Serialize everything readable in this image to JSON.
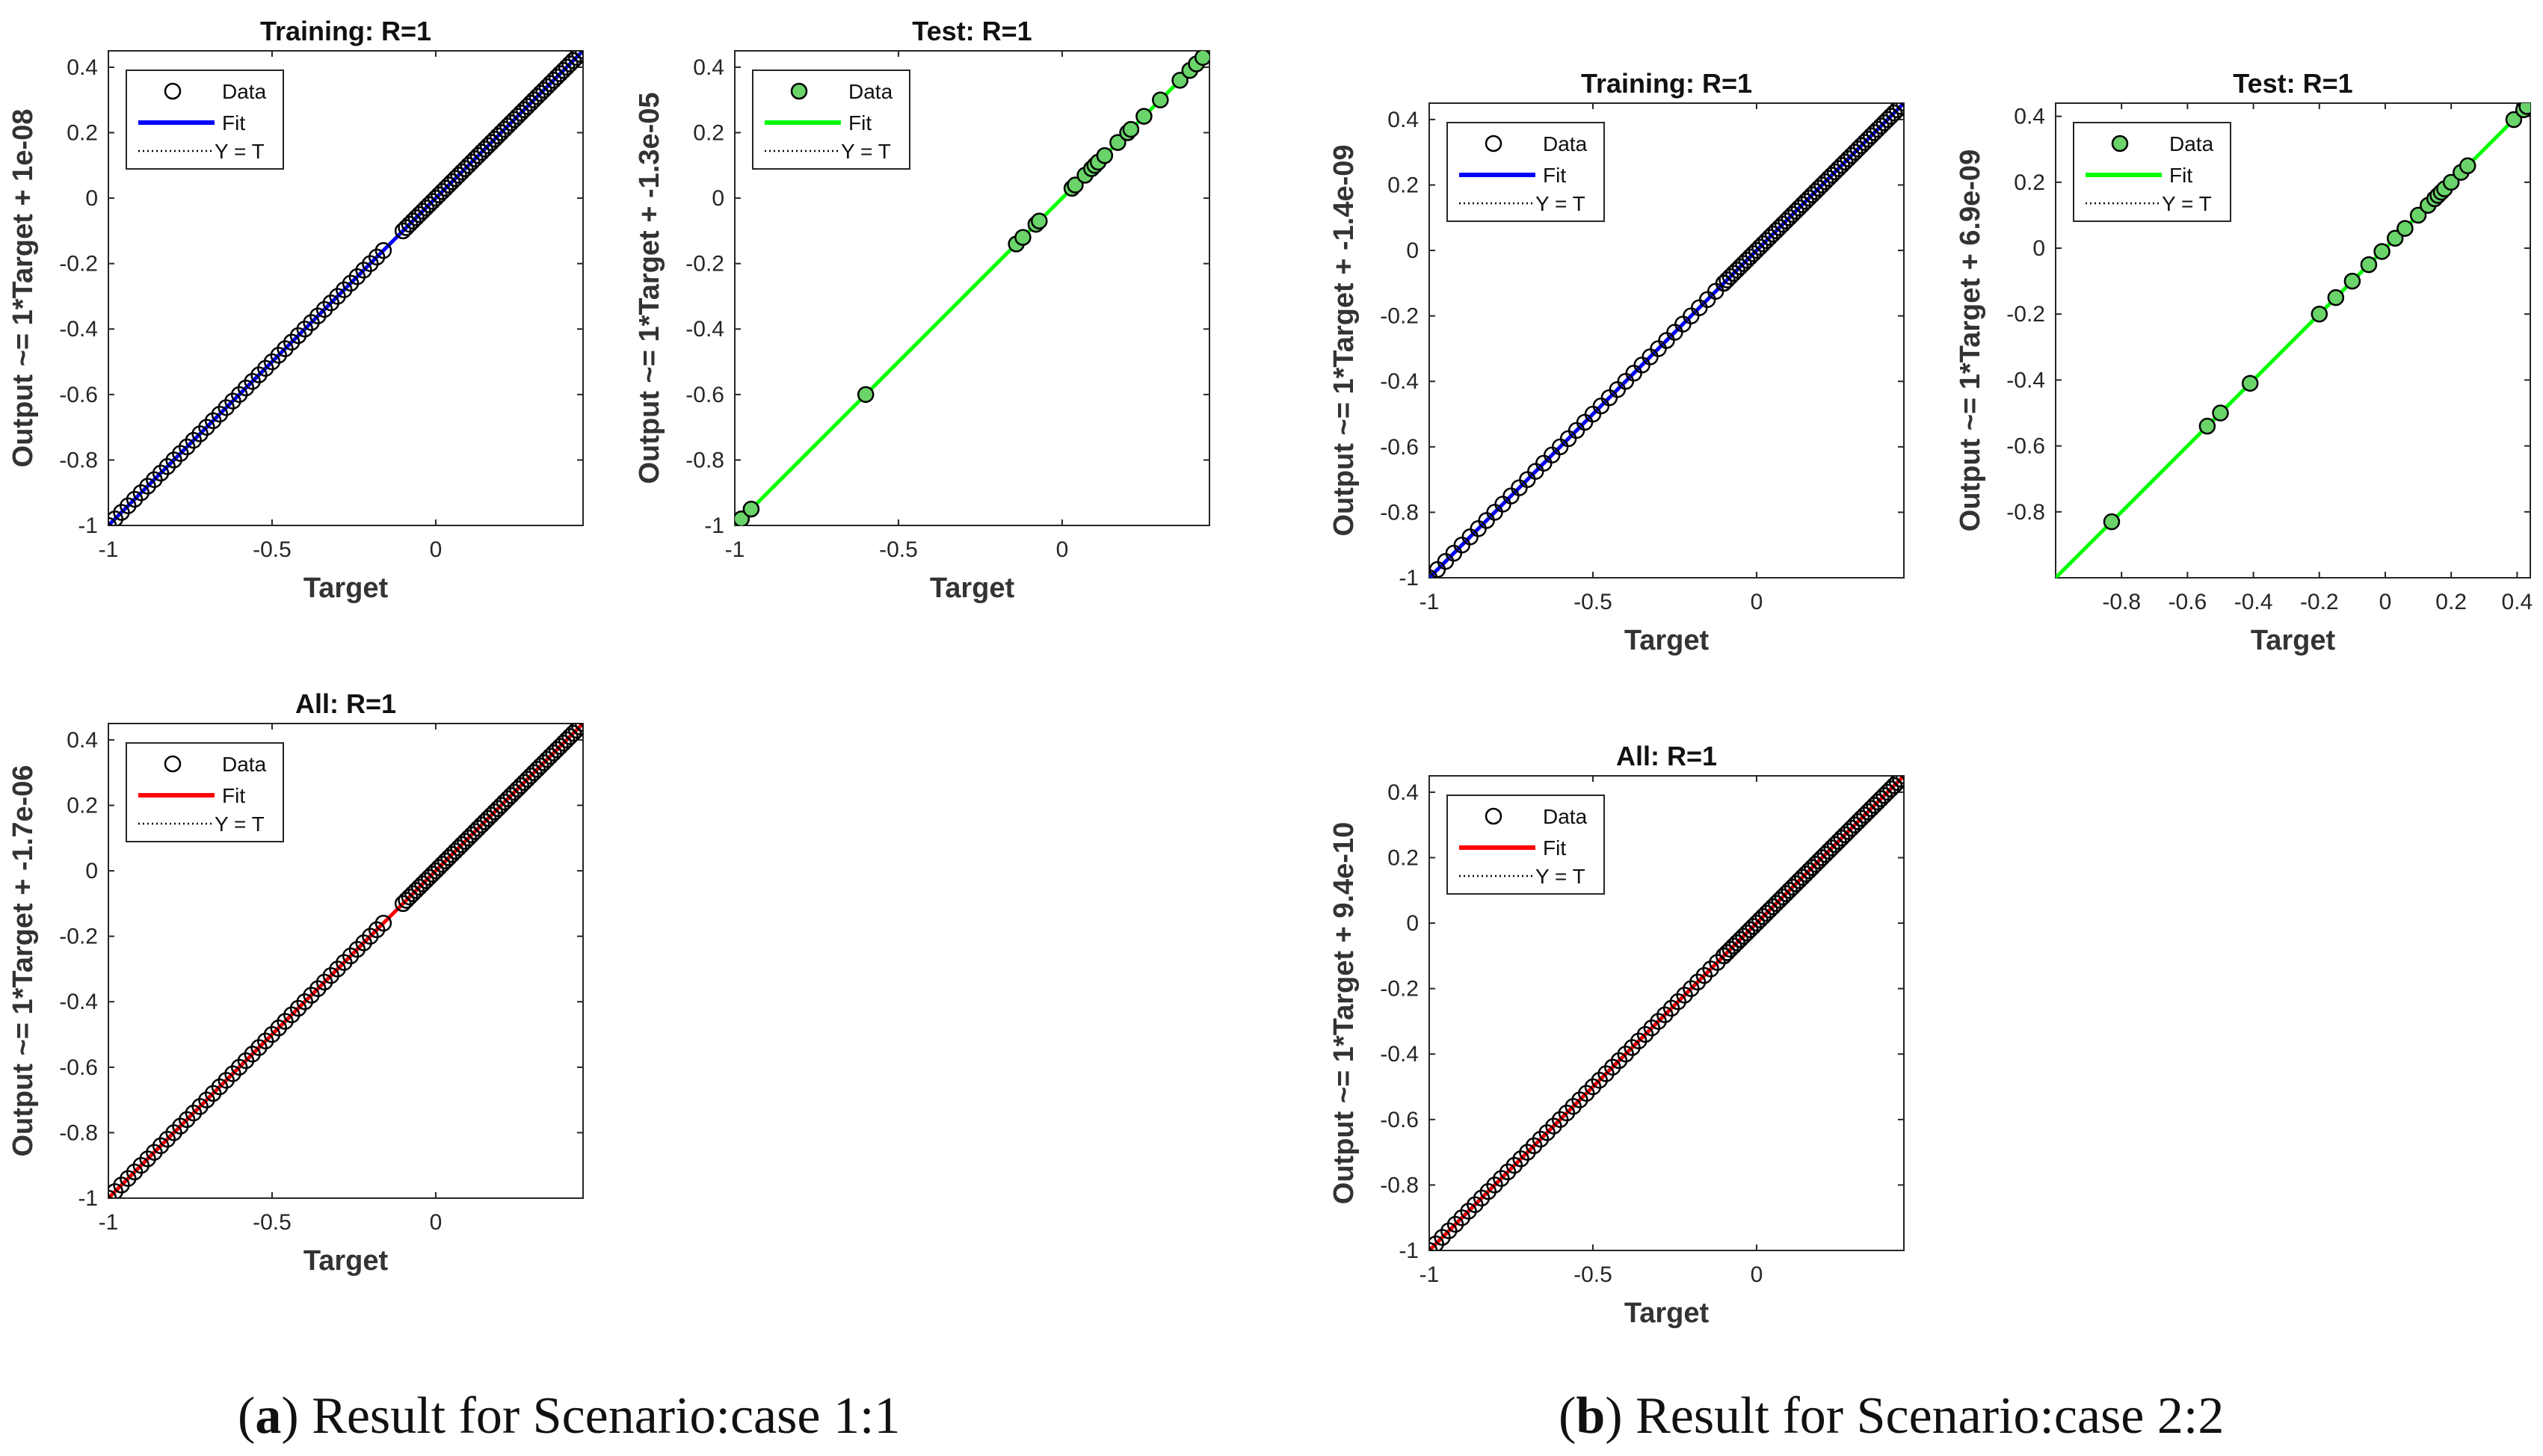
{
  "captions": {
    "a": {
      "label": "a",
      "text": "Result for Scenario:case 1:1"
    },
    "b": {
      "label": "b",
      "text": "Result for Scenario:case 2:2"
    }
  },
  "colors": {
    "training": "#0000ff",
    "test": "#00ff00",
    "all": "#ff0000",
    "axis": "#262626",
    "marker_fill_test": "#6ad36a"
  },
  "chart_data": [
    {
      "id": "a-training",
      "type": "scatter",
      "title": "Training: R=1",
      "xlabel": "Target",
      "ylabel": "Output ~= 1*Target + 1e-08",
      "xlim": [
        -1,
        0.45
      ],
      "ylim": [
        -1,
        0.45
      ],
      "xticks": [
        -1,
        -0.5,
        0
      ],
      "xticklabels": [
        "-1",
        "-0.5",
        "0"
      ],
      "yticks": [
        -1,
        -0.8,
        -0.6,
        -0.4,
        -0.2,
        0,
        0.2,
        0.4
      ],
      "yticklabels": [
        "-1",
        "-0.8",
        "-0.6",
        "-0.4",
        "-0.2",
        "0",
        "0.2",
        "0.4"
      ],
      "fit_color": "#0000ff",
      "marker_fill": "none",
      "slope": 1,
      "intercept": 1e-08,
      "legend": [
        "Data",
        "Fit",
        "Y = T"
      ],
      "legend_position": "top-left",
      "points": {
        "dense_ranges": [
          [
            -1,
            -0.15,
            0.02
          ],
          [
            -0.1,
            0.45,
            0.01
          ]
        ]
      }
    },
    {
      "id": "a-test",
      "type": "scatter",
      "title": "Test: R=1",
      "xlabel": "Target",
      "ylabel": "Output ~= 1*Target + -1.3e-05",
      "xlim": [
        -1,
        0.45
      ],
      "ylim": [
        -1,
        0.45
      ],
      "xticks": [
        -1,
        -0.5,
        0
      ],
      "xticklabels": [
        "-1",
        "-0.5",
        "0"
      ],
      "yticks": [
        -1,
        -0.8,
        -0.6,
        -0.4,
        -0.2,
        0,
        0.2,
        0.4
      ],
      "yticklabels": [
        "-1",
        "-0.8",
        "-0.6",
        "-0.4",
        "-0.2",
        "0",
        "0.2",
        "0.4"
      ],
      "fit_color": "#00ff00",
      "marker_fill": "#6ad36a",
      "slope": 1,
      "intercept": -1.3e-05,
      "legend": [
        "Data",
        "Fit",
        "Y = T"
      ],
      "legend_position": "top-left",
      "points": {
        "x": [
          -0.98,
          -0.95,
          -0.6,
          -0.14,
          -0.12,
          -0.08,
          -0.07,
          0.03,
          0.04,
          0.07,
          0.09,
          0.1,
          0.11,
          0.13,
          0.17,
          0.2,
          0.21,
          0.25,
          0.3,
          0.36,
          0.39,
          0.41,
          0.43
        ]
      }
    },
    {
      "id": "a-all",
      "type": "scatter",
      "title": "All: R=1",
      "xlabel": "Target",
      "ylabel": "Output ~= 1*Target + -1.7e-06",
      "xlim": [
        -1,
        0.45
      ],
      "ylim": [
        -1,
        0.45
      ],
      "xticks": [
        -1,
        -0.5,
        0
      ],
      "xticklabels": [
        "-1",
        "-0.5",
        "0"
      ],
      "yticks": [
        -1,
        -0.8,
        -0.6,
        -0.4,
        -0.2,
        0,
        0.2,
        0.4
      ],
      "yticklabels": [
        "-1",
        "-0.8",
        "-0.6",
        "-0.4",
        "-0.2",
        "0",
        "0.2",
        "0.4"
      ],
      "fit_color": "#ff0000",
      "marker_fill": "none",
      "slope": 1,
      "intercept": -1.7e-06,
      "legend": [
        "Data",
        "Fit",
        "Y = T"
      ],
      "legend_position": "top-left",
      "points": {
        "dense_ranges": [
          [
            -1,
            -0.15,
            0.02
          ],
          [
            -0.1,
            0.45,
            0.01
          ]
        ]
      }
    },
    {
      "id": "b-training",
      "type": "scatter",
      "title": "Training: R=1",
      "xlabel": "Target",
      "ylabel": "Output ~= 1*Target + -1.4e-09",
      "xlim": [
        -1,
        0.45
      ],
      "ylim": [
        -1,
        0.45
      ],
      "xticks": [
        -1,
        -0.5,
        0
      ],
      "xticklabels": [
        "-1",
        "-0.5",
        "0"
      ],
      "yticks": [
        -1,
        -0.8,
        -0.6,
        -0.4,
        -0.2,
        0,
        0.2,
        0.4
      ],
      "yticklabels": [
        "-1",
        "-0.8",
        "-0.6",
        "-0.4",
        "-0.2",
        "0",
        "0.2",
        "0.4"
      ],
      "fit_color": "#0000ff",
      "marker_fill": "none",
      "slope": 1,
      "intercept": -1.4e-09,
      "legend": [
        "Data",
        "Fit",
        "Y = T"
      ],
      "legend_position": "top-left",
      "points": {
        "dense_ranges": [
          [
            -1,
            -0.1,
            0.025
          ],
          [
            -0.1,
            0.45,
            0.01
          ]
        ]
      }
    },
    {
      "id": "b-test",
      "type": "scatter",
      "title": "Test: R=1",
      "xlabel": "Target",
      "ylabel": "Output ~= 1*Target + 6.9e-09",
      "xlim": [
        -1,
        0.44
      ],
      "ylim": [
        -1,
        0.44
      ],
      "xticks": [
        -0.8,
        -0.6,
        -0.4,
        -0.2,
        0,
        0.2,
        0.4
      ],
      "xticklabels": [
        "-0.8",
        "-0.6",
        "-0.4",
        "-0.2",
        "0",
        "0.2",
        "0.4"
      ],
      "yticks": [
        -0.8,
        -0.6,
        -0.4,
        -0.2,
        0,
        0.2,
        0.4
      ],
      "yticklabels": [
        "-0.8",
        "-0.6",
        "-0.4",
        "-0.2",
        "0",
        "0.2",
        "0.4"
      ],
      "fit_color": "#00ff00",
      "marker_fill": "#6ad36a",
      "slope": 1,
      "intercept": 6.9e-09,
      "legend": [
        "Data",
        "Fit",
        "Y = T"
      ],
      "legend_position": "top-left",
      "points": {
        "x": [
          -0.83,
          -0.54,
          -0.5,
          -0.41,
          -0.2,
          -0.15,
          -0.1,
          -0.05,
          -0.01,
          0.03,
          0.06,
          0.1,
          0.13,
          0.15,
          0.16,
          0.17,
          0.18,
          0.2,
          0.23,
          0.25,
          0.39,
          0.42,
          0.43
        ]
      }
    },
    {
      "id": "b-all",
      "type": "scatter",
      "title": "All: R=1",
      "xlabel": "Target",
      "ylabel": "Output ~= 1*Target + 9.4e-10",
      "xlim": [
        -1,
        0.45
      ],
      "ylim": [
        -1,
        0.45
      ],
      "xticks": [
        -1,
        -0.5,
        0
      ],
      "xticklabels": [
        "-1",
        "-0.5",
        "0"
      ],
      "yticks": [
        -1,
        -0.8,
        -0.6,
        -0.4,
        -0.2,
        0,
        0.2,
        0.4
      ],
      "yticklabels": [
        "-1",
        "-0.8",
        "-0.6",
        "-0.4",
        "-0.2",
        "0",
        "0.2",
        "0.4"
      ],
      "fit_color": "#ff0000",
      "marker_fill": "none",
      "slope": 1,
      "intercept": 9.4e-10,
      "legend": [
        "Data",
        "Fit",
        "Y = T"
      ],
      "legend_position": "top-left",
      "points": {
        "dense_ranges": [
          [
            -1,
            -0.1,
            0.02
          ],
          [
            -0.1,
            0.45,
            0.01
          ]
        ]
      }
    }
  ]
}
